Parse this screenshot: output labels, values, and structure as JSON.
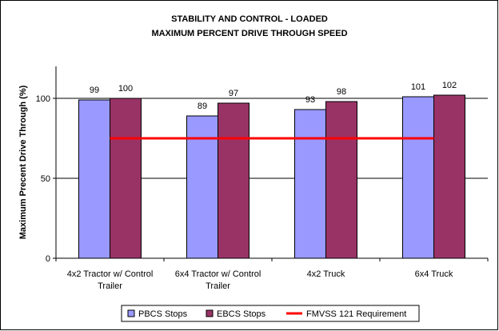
{
  "chart_data": {
    "type": "bar",
    "title_lines": [
      "STABILITY AND CONTROL -  LOADED",
      "MAXIMUM PERCENT DRIVE THROUGH SPEED"
    ],
    "ylabel": "Maximum Precent Drive Through (%)",
    "xlabel": "",
    "ylim": [
      0,
      120
    ],
    "yticks": [
      0,
      50,
      100
    ],
    "grid": "horizontal",
    "legend_position": "bottom",
    "categories": [
      [
        "4x2 Tractor w/ Control",
        "Trailer"
      ],
      [
        "6x4 Tractor w/ Control",
        "Trailer"
      ],
      [
        "4x2 Truck"
      ],
      [
        "6x4 Truck"
      ]
    ],
    "series": [
      {
        "name": "PBCS Stops",
        "color": "#9999ff",
        "values": [
          99,
          89,
          93,
          101
        ]
      },
      {
        "name": "EBCS Stops",
        "color": "#993366",
        "values": [
          100,
          97,
          98,
          102
        ]
      }
    ],
    "reference_line": {
      "name": "FMVSS 121 Requirement",
      "color": "#ff0000",
      "value": 75
    }
  }
}
